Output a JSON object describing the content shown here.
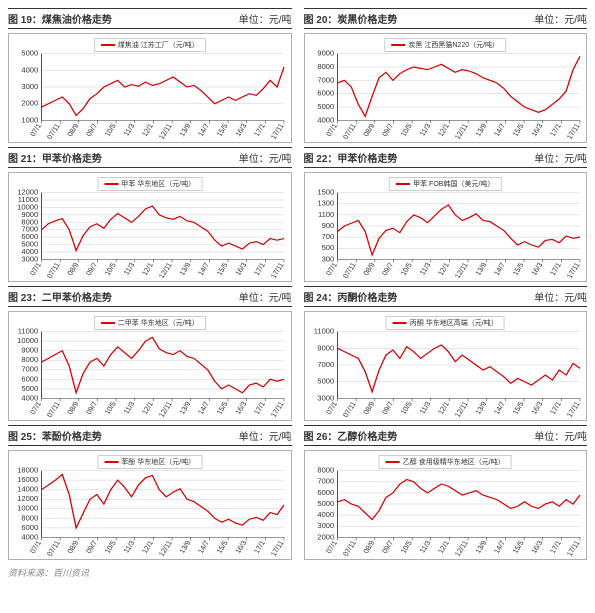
{
  "source": "资料来源：百川资讯",
  "line_color": "#d00000",
  "axis_color": "#333333",
  "grid_color": "#cccccc",
  "tick_font": 7,
  "xticks": [
    "07/1",
    "07/11",
    "08/9",
    "09/7",
    "10/5",
    "11/3",
    "12/1",
    "12/11",
    "13/9",
    "14/7",
    "15/5",
    "16/3",
    "17/1",
    "17/11"
  ],
  "charts": [
    {
      "fig": "图 19：煤焦油价格走势",
      "unit": "单位：元/吨",
      "legend": "煤焦油 江苏工厂（元/吨）",
      "ymin": 1000,
      "ymax": 5000,
      "ystep": 1000,
      "data": [
        1800,
        2000,
        2200,
        2400,
        2000,
        1300,
        1700,
        2300,
        2600,
        3000,
        3200,
        3400,
        3000,
        3150,
        3050,
        3300,
        3100,
        3200,
        3400,
        3600,
        3300,
        3000,
        3100,
        2800,
        2400,
        2000,
        2200,
        2400,
        2200,
        2400,
        2600,
        2500,
        2900,
        3400,
        3000,
        4200
      ]
    },
    {
      "fig": "图 20：炭黑价格走势",
      "unit": "单位：元/吨",
      "legend": "炭黑 江西黑猫N220（元/吨）",
      "ymin": 4000,
      "ymax": 9000,
      "ystep": 1000,
      "data": [
        6800,
        7000,
        6500,
        5200,
        4300,
        5800,
        7200,
        7600,
        7000,
        7500,
        7800,
        8000,
        7900,
        7800,
        8000,
        8200,
        7900,
        7600,
        7800,
        7700,
        7500,
        7200,
        7000,
        6800,
        6400,
        5800,
        5400,
        5000,
        4800,
        4600,
        4800,
        5200,
        5600,
        6200,
        7800,
        8800
      ]
    },
    {
      "fig": "图 21：甲苯价格走势",
      "unit": "单位：元/吨",
      "legend": "甲苯 华东地区（元/吨）",
      "ymin": 3000,
      "ymax": 12000,
      "ystep": 1000,
      "data": [
        7000,
        7800,
        8200,
        8500,
        7000,
        4200,
        6200,
        7400,
        7800,
        7200,
        8400,
        9200,
        8600,
        8000,
        8800,
        9800,
        10200,
        9000,
        8600,
        8400,
        8800,
        8200,
        8000,
        7400,
        6800,
        5600,
        4800,
        5200,
        4800,
        4400,
        5200,
        5400,
        5000,
        5800,
        5600,
        5800
      ]
    },
    {
      "fig": "图 22：甲苯价格走势",
      "unit": "单位：元/吨",
      "legend": "甲苯 FOB韩国（美元/吨）",
      "ymin": 300,
      "ymax": 1500,
      "ystep": 200,
      "data": [
        800,
        900,
        950,
        1000,
        800,
        380,
        680,
        820,
        860,
        780,
        980,
        1100,
        1050,
        960,
        1080,
        1200,
        1280,
        1100,
        1000,
        1050,
        1120,
        1000,
        980,
        900,
        820,
        680,
        560,
        620,
        560,
        520,
        640,
        660,
        600,
        720,
        680,
        700
      ]
    },
    {
      "fig": "图 23：二甲苯价格走势",
      "unit": "单位：元/吨",
      "legend": "二甲苯 华东地区（元/吨）",
      "ymin": 4000,
      "ymax": 11000,
      "ystep": 1000,
      "data": [
        7800,
        8200,
        8600,
        9000,
        7400,
        4600,
        6600,
        7800,
        8200,
        7400,
        8600,
        9400,
        8800,
        8200,
        9000,
        10000,
        10400,
        9200,
        8800,
        8600,
        9000,
        8400,
        8200,
        7600,
        7000,
        5800,
        5000,
        5400,
        5000,
        4600,
        5400,
        5600,
        5200,
        6000,
        5800,
        6000
      ]
    },
    {
      "fig": "图 24：丙酮价格走势",
      "unit": "单位：元/吨",
      "legend": "丙酮 华东地区高端（元/吨）",
      "ymin": 3000,
      "ymax": 11000,
      "ystep": 2000,
      "data": [
        9000,
        8600,
        8200,
        7800,
        6200,
        3800,
        6400,
        8200,
        8800,
        7800,
        9200,
        8600,
        7800,
        8400,
        9000,
        9400,
        8600,
        7400,
        8200,
        7600,
        7000,
        6400,
        6800,
        6200,
        5600,
        4800,
        5400,
        5000,
        4600,
        5200,
        5800,
        5200,
        6400,
        5800,
        7200,
        6600
      ]
    },
    {
      "fig": "图 25：苯酚价格走势",
      "unit": "单位：元/吨",
      "legend": "苯酚 华东地区（元/吨）",
      "ymin": 4000,
      "ymax": 18000,
      "ystep": 2000,
      "data": [
        14000,
        15000,
        16000,
        17200,
        13000,
        6000,
        9000,
        12000,
        13000,
        11000,
        14000,
        16000,
        14500,
        12500,
        15000,
        16500,
        17000,
        14000,
        12500,
        13500,
        14200,
        12000,
        11500,
        10500,
        9500,
        8000,
        7200,
        7800,
        7000,
        6600,
        7800,
        8200,
        7600,
        9200,
        8800,
        10800
      ]
    },
    {
      "fig": "图 26：乙醇价格走势",
      "unit": "单位：元/吨",
      "legend": "乙醇 食用级精华东地区（元/吨）",
      "ymin": 2000,
      "ymax": 8000,
      "ystep": 1000,
      "data": [
        5200,
        5400,
        5000,
        4800,
        4200,
        3600,
        4400,
        5600,
        6000,
        6800,
        7200,
        7000,
        6400,
        6000,
        6400,
        6800,
        6600,
        6200,
        5800,
        6000,
        6200,
        5800,
        5600,
        5400,
        5000,
        4600,
        4800,
        5200,
        4800,
        4600,
        5000,
        5200,
        4800,
        5400,
        5000,
        5800
      ]
    }
  ]
}
